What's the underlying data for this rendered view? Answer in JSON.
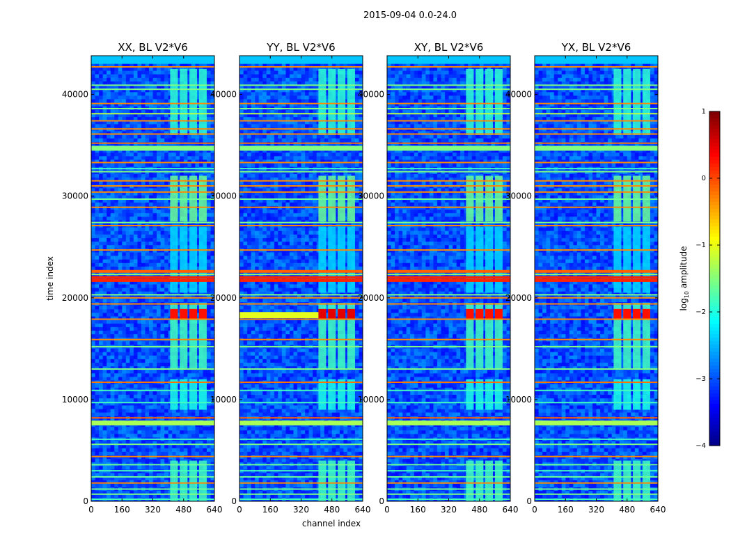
{
  "figure": {
    "suptitle": "2015-09-04 0.0-24.0",
    "xlabel": "channel index",
    "ylabel": "time index"
  },
  "chart_data": {
    "type": "heatmap",
    "title": "2015-09-04 0.0-24.0",
    "xlabel": "channel index",
    "ylabel": "time index",
    "xlim": [
      0,
      640
    ],
    "ylim": [
      0,
      43800
    ],
    "x_ticks": [
      0,
      160,
      320,
      480,
      640
    ],
    "y_ticks": [
      0,
      10000,
      20000,
      30000,
      40000
    ],
    "y_tick_labels": [
      "0",
      "10000",
      "20000",
      "30000",
      "40000"
    ],
    "panels": [
      {
        "title": "XX, BL V2*V6",
        "x_ticks_shown": [
          0,
          160,
          320,
          480,
          640
        ]
      },
      {
        "title": "YY, BL V2*V6",
        "x_ticks_shown": [
          0,
          160,
          320,
          480,
          640
        ]
      },
      {
        "title": "XY, BL V2*V6",
        "x_ticks_shown": [
          0,
          160,
          320,
          480,
          640
        ]
      },
      {
        "title": "YX, BL V2*V6",
        "x_ticks_shown": [
          0,
          160,
          320,
          480,
          640
        ]
      }
    ],
    "colorbar": {
      "label": "log$_{10}$ amplitude",
      "label_text": "log",
      "label_sub": "10",
      "label_suffix": " amplitude",
      "range": [
        -4,
        1
      ],
      "ticks": [
        1,
        0,
        -1,
        -2,
        -3,
        -4
      ],
      "tick_labels": [
        "1",
        "0",
        "−1",
        "−2",
        "−3",
        "−4"
      ],
      "colormap": "jet"
    },
    "rfi_horizontal_bands": [
      {
        "t": 42700,
        "level": -0.3
      },
      {
        "t": 40900,
        "level": -1.5
      },
      {
        "t": 40500,
        "level": -1.5
      },
      {
        "t": 39100,
        "level": -0.3
      },
      {
        "t": 38600,
        "level": -1.5
      },
      {
        "t": 38100,
        "level": -1.2
      },
      {
        "t": 37400,
        "level": -0.3
      },
      {
        "t": 36600,
        "level": -0.3
      },
      {
        "t": 36100,
        "level": -0.3
      },
      {
        "t": 35200,
        "level": -0.2
      },
      {
        "t": 34700,
        "level": -1.5
      },
      {
        "t": 33300,
        "level": -0.3
      },
      {
        "t": 32700,
        "level": -1.8
      },
      {
        "t": 32400,
        "level": -1.5
      },
      {
        "t": 31500,
        "level": -0.3
      },
      {
        "t": 31000,
        "level": -0.3
      },
      {
        "t": 30400,
        "level": -0.3
      },
      {
        "t": 29700,
        "level": -1.6
      },
      {
        "t": 28900,
        "level": -0.3
      },
      {
        "t": 27400,
        "level": -1.5
      },
      {
        "t": 27100,
        "level": -0.3
      },
      {
        "t": 24700,
        "level": -0.3
      },
      {
        "t": 22600,
        "level": -0.1
      },
      {
        "t": 22300,
        "level": -1.4
      },
      {
        "t": 22000,
        "level": 0.2
      },
      {
        "t": 21700,
        "level": 0.2
      },
      {
        "t": 20300,
        "level": -1.5
      },
      {
        "t": 20000,
        "level": -0.3
      },
      {
        "t": 19400,
        "level": -0.3
      },
      {
        "t": 17900,
        "level": -0.3
      },
      {
        "t": 15900,
        "level": -0.3
      },
      {
        "t": 15200,
        "level": -1.5
      },
      {
        "t": 13000,
        "level": -1.5
      },
      {
        "t": 11700,
        "level": -0.2
      },
      {
        "t": 10900,
        "level": -1.8
      },
      {
        "t": 9700,
        "level": -1.8
      },
      {
        "t": 8200,
        "level": -0.1
      },
      {
        "t": 7700,
        "level": -1.3
      },
      {
        "t": 6100,
        "level": -1.8
      },
      {
        "t": 5600,
        "level": -1.5
      },
      {
        "t": 4400,
        "level": -0.3
      },
      {
        "t": 3600,
        "level": -1.6
      },
      {
        "t": 3000,
        "level": -1.8
      },
      {
        "t": 2400,
        "level": -1.6
      },
      {
        "t": 1800,
        "level": -0.3
      },
      {
        "t": 1200,
        "level": -1.6
      },
      {
        "t": 700,
        "level": -1.5
      },
      {
        "t": 200,
        "level": -1.8
      }
    ],
    "bright_channel_blocks": [
      {
        "c0": 410,
        "c1": 450
      },
      {
        "c0": 460,
        "c1": 500
      },
      {
        "c0": 510,
        "c1": 550
      },
      {
        "c0": 560,
        "c1": 600
      }
    ],
    "active_time_ranges": [
      {
        "t0": 0,
        "t1": 4000,
        "level": -1.8
      },
      {
        "t0": 9000,
        "level": -2.0,
        "t1": 12000
      },
      {
        "t0": 13000,
        "t1": 19500,
        "level": -1.8
      },
      {
        "t0": 20500,
        "t1": 27000,
        "level": -2.3
      },
      {
        "t0": 27500,
        "t1": 32000,
        "level": -1.6
      },
      {
        "t0": 36000,
        "t1": 42500,
        "level": -1.9
      }
    ],
    "hot_feature": {
      "t0": 17900,
      "t1": 18900,
      "level": 0.3
    }
  }
}
